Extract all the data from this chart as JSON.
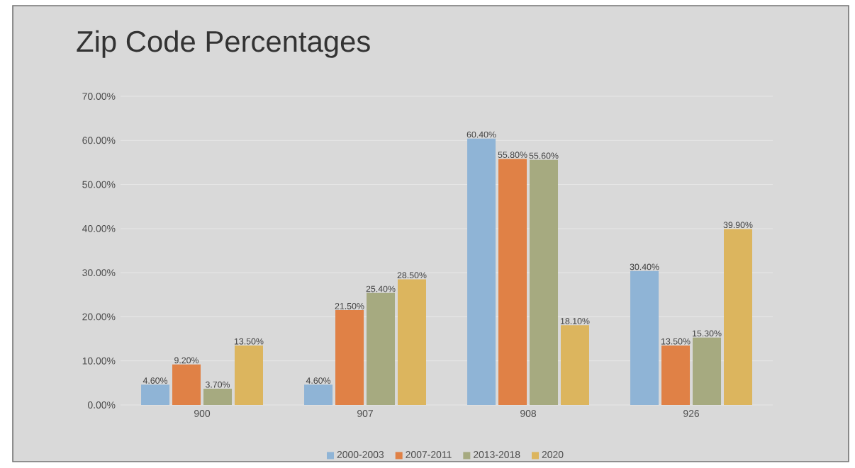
{
  "chart_data": {
    "type": "bar",
    "title": "Zip Code Percentages",
    "categories": [
      "900",
      "907",
      "908",
      "926"
    ],
    "series": [
      {
        "name": "2000-2003",
        "color": "#8fb4d6",
        "values": [
          4.6,
          4.6,
          60.4,
          30.4
        ],
        "value_labels": [
          "4.60%",
          "4.60%",
          "60.40%",
          "30.40%"
        ]
      },
      {
        "name": "2007-2011",
        "color": "#e08146",
        "values": [
          9.2,
          21.5,
          55.8,
          13.5
        ],
        "value_labels": [
          "9.20%",
          "21.50%",
          "55.80%",
          "13.50%"
        ]
      },
      {
        "name": "2013-2018",
        "color": "#a6aa80",
        "values": [
          3.7,
          25.4,
          55.6,
          15.3
        ],
        "value_labels": [
          "3.70%",
          "25.40%",
          "55.60%",
          "15.30%"
        ]
      },
      {
        "name": "2020",
        "color": "#dcb55e",
        "values": [
          13.5,
          28.5,
          18.1,
          39.9
        ],
        "value_labels": [
          "13.50%",
          "28.50%",
          "18.10%",
          "39.90%"
        ]
      }
    ],
    "ylim": [
      0,
      70
    ],
    "yticks": [
      {
        "value": 0,
        "label": "0.00%"
      },
      {
        "value": 10,
        "label": "10.00%"
      },
      {
        "value": 20,
        "label": "20.00%"
      },
      {
        "value": 30,
        "label": "30.00%"
      },
      {
        "value": 40,
        "label": "40.00%"
      },
      {
        "value": 50,
        "label": "50.00%"
      },
      {
        "value": 60,
        "label": "60.00%"
      },
      {
        "value": 70,
        "label": "70.00%"
      }
    ],
    "grid": "y",
    "legend": "bottom"
  }
}
